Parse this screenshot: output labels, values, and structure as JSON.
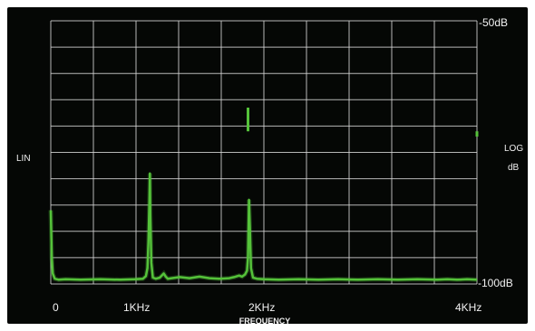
{
  "chart_data": {
    "type": "line",
    "title": "",
    "xlabel": "FREQUENCY",
    "ylabel_left": "LIN",
    "ylabel_right_line1": "LOG",
    "ylabel_right_line2": "dB",
    "x_ticks": [
      "0",
      "1KHz",
      "2KHz",
      "4KHz"
    ],
    "x_tick_values": [
      0,
      1000,
      2000,
      4000
    ],
    "xlim": [
      0,
      4300
    ],
    "y_top_label": "-50dB",
    "y_bottom_label": "-100dB",
    "ylim": [
      -100,
      -50
    ],
    "grid": true,
    "grid_divisions": {
      "x": 10,
      "y": 10
    },
    "series": [
      {
        "color": "#55c23a",
        "x": [
          0,
          10,
          20,
          40,
          80,
          150,
          300,
          500,
          700,
          850,
          930,
          960,
          975,
          985,
          995,
          1000,
          1005,
          1015,
          1030,
          1060,
          1100,
          1140,
          1160,
          1180,
          1220,
          1300,
          1400,
          1500,
          1600,
          1700,
          1800,
          1850,
          1900,
          1930,
          1960,
          1980,
          1990,
          2000,
          2010,
          2020,
          2040,
          2080,
          2150,
          2300,
          2500,
          2700,
          2900,
          3100,
          3300,
          3500,
          3700,
          3900,
          4000,
          4100,
          4200,
          4300
        ],
        "y": [
          -86,
          -95,
          -98,
          -99,
          -99.2,
          -99.1,
          -99.2,
          -99.1,
          -99.2,
          -99.1,
          -99,
          -98.5,
          -97,
          -92,
          -84,
          -79,
          -87,
          -96,
          -98.8,
          -99,
          -98.8,
          -98,
          -98.6,
          -99,
          -98.9,
          -98.7,
          -98.9,
          -98.6,
          -98.9,
          -99,
          -98.9,
          -98.7,
          -98.4,
          -98.6,
          -98.2,
          -97.5,
          -95,
          -84,
          -90,
          -97,
          -98.8,
          -99,
          -99.1,
          -99.2,
          -99.1,
          -99.2,
          -99.1,
          -99.2,
          -99.1,
          -99.2,
          -99.1,
          -99.2,
          -99.1,
          -99.2,
          -99.1,
          -99.2
        ]
      }
    ],
    "annotation_marks": [
      {
        "x": 1990,
        "y_top": -66.5,
        "y_bottom": -71
      },
      {
        "x": 4300,
        "y_top": -71,
        "y_bottom": -72
      }
    ]
  }
}
